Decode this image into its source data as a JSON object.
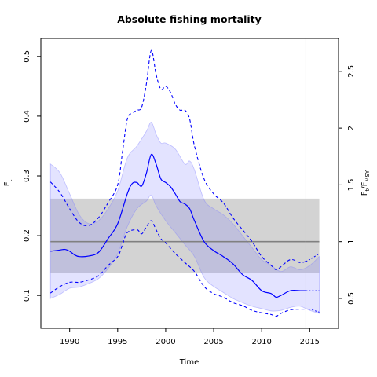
{
  "chart_data": {
    "type": "line",
    "title": "Absolute fishing mortality",
    "xlabel": "Time",
    "ylabel": "F",
    "ylabel_sub": "t",
    "y2label_num": "F",
    "y2label_num_sub": "t",
    "y2label_den": "F",
    "y2label_den_sub": "MSY",
    "xlim": [
      1987,
      2018
    ],
    "ylim": [
      0.045,
      0.53
    ],
    "xticks": [
      1990,
      1995,
      2000,
      2005,
      2010,
      2015
    ],
    "yticks": [
      0.1,
      0.2,
      0.3,
      0.4,
      0.5
    ],
    "y2ticks": [
      0.5,
      1,
      1.5,
      2,
      2.5
    ],
    "fmsy": 0.19,
    "fmsy_band": [
      0.137,
      0.262
    ],
    "band_x": [
      1988,
      2016
    ],
    "vline_x": 2014.6,
    "forecast_from": 2014.6,
    "colors": {
      "series": "#0000ff",
      "ci_fill": "#8080ff",
      "fmsy_band": "#d3d3d3",
      "fmsy_line": "#808080",
      "vline": "#cccccc"
    },
    "series": [
      {
        "role": "estimate",
        "x": [
          1988,
          1989,
          1989.5,
          1990,
          1990.5,
          1991,
          1992,
          1993,
          1994,
          1995,
          1996,
          1996.5,
          1997,
          1997.5,
          1998,
          1998.5,
          1999,
          1999.5,
          2000,
          2000.5,
          2001,
          2001.5,
          2002,
          2002.5,
          2003,
          2004,
          2005,
          2006,
          2007,
          2008,
          2009,
          2010,
          2011,
          2011.5,
          2012,
          2013,
          2014,
          2014.6,
          2015,
          2016
        ],
        "y": [
          0.174,
          0.176,
          0.177,
          0.174,
          0.168,
          0.165,
          0.166,
          0.172,
          0.195,
          0.22,
          0.27,
          0.287,
          0.289,
          0.283,
          0.305,
          0.336,
          0.32,
          0.295,
          0.289,
          0.282,
          0.27,
          0.257,
          0.253,
          0.245,
          0.225,
          0.19,
          0.175,
          0.165,
          0.153,
          0.135,
          0.125,
          0.108,
          0.103,
          0.097,
          0.1,
          0.108,
          0.108,
          0.108,
          0.108,
          0.108
        ]
      },
      {
        "role": "upper_ci",
        "x": [
          1988,
          1989,
          1990,
          1991,
          1992,
          1993,
          1994,
          1995,
          1995.5,
          1996,
          1996.5,
          1997,
          1997.5,
          1998,
          1998.5,
          1999,
          1999.5,
          2000,
          2000.5,
          2001,
          2001.5,
          2002,
          2002.5,
          2003,
          2004,
          2005,
          2006,
          2007,
          2008,
          2009,
          2010,
          2011,
          2011.5,
          2012,
          2013,
          2014,
          2014.6,
          2015,
          2016
        ],
        "y": [
          0.29,
          0.272,
          0.245,
          0.222,
          0.217,
          0.23,
          0.255,
          0.285,
          0.34,
          0.395,
          0.405,
          0.41,
          0.415,
          0.455,
          0.51,
          0.47,
          0.445,
          0.45,
          0.44,
          0.42,
          0.41,
          0.41,
          0.395,
          0.35,
          0.295,
          0.27,
          0.255,
          0.23,
          0.21,
          0.19,
          0.165,
          0.15,
          0.143,
          0.148,
          0.16,
          0.155,
          0.157,
          0.16,
          0.17
        ]
      },
      {
        "role": "lower_ci",
        "x": [
          1988,
          1989,
          1990,
          1991,
          1992,
          1993,
          1994,
          1995,
          1995.5,
          1996,
          1997,
          1997.5,
          1998,
          1998.5,
          1999,
          1999.5,
          2000,
          2001,
          2002,
          2003,
          2004,
          2005,
          2006,
          2007,
          2008,
          2009,
          2010,
          2011,
          2011.5,
          2012,
          2013,
          2014,
          2014.6,
          2015,
          2016
        ],
        "y": [
          0.104,
          0.115,
          0.122,
          0.122,
          0.126,
          0.133,
          0.15,
          0.165,
          0.185,
          0.205,
          0.21,
          0.203,
          0.215,
          0.225,
          0.21,
          0.195,
          0.188,
          0.17,
          0.155,
          0.14,
          0.115,
          0.103,
          0.097,
          0.088,
          0.083,
          0.075,
          0.071,
          0.068,
          0.065,
          0.07,
          0.076,
          0.077,
          0.077,
          0.077,
          0.072
        ]
      },
      {
        "role": "ci_band_upper",
        "x": [
          1988,
          1989,
          1990,
          1991,
          1992,
          1993,
          1994,
          1995,
          1996,
          1997,
          1998,
          1998.5,
          1999,
          1999.5,
          2000,
          2001,
          2002,
          2002.5,
          2003,
          2004,
          2005,
          2006,
          2007,
          2008,
          2009,
          2010,
          2011,
          2012,
          2013,
          2014,
          2015,
          2016
        ],
        "y": [
          0.32,
          0.305,
          0.27,
          0.235,
          0.22,
          0.225,
          0.245,
          0.275,
          0.33,
          0.35,
          0.375,
          0.39,
          0.37,
          0.355,
          0.355,
          0.345,
          0.32,
          0.325,
          0.31,
          0.26,
          0.245,
          0.235,
          0.22,
          0.2,
          0.18,
          0.16,
          0.15,
          0.14,
          0.148,
          0.143,
          0.15,
          0.165
        ]
      },
      {
        "role": "ci_band_lower",
        "x": [
          1988,
          1989,
          1990,
          1991,
          1992,
          1993,
          1994,
          1995,
          1996,
          1997,
          1998,
          1998.5,
          1999,
          2000,
          2001,
          2002,
          2003,
          2004,
          2005,
          2006,
          2007,
          2008,
          2009,
          2010,
          2011,
          2012,
          2013,
          2014,
          2015,
          2016
        ],
        "y": [
          0.095,
          0.102,
          0.112,
          0.114,
          0.12,
          0.128,
          0.145,
          0.17,
          0.215,
          0.245,
          0.258,
          0.268,
          0.25,
          0.225,
          0.205,
          0.185,
          0.165,
          0.13,
          0.115,
          0.105,
          0.095,
          0.088,
          0.082,
          0.078,
          0.074,
          0.075,
          0.08,
          0.082,
          0.075,
          0.07
        ]
      }
    ]
  }
}
